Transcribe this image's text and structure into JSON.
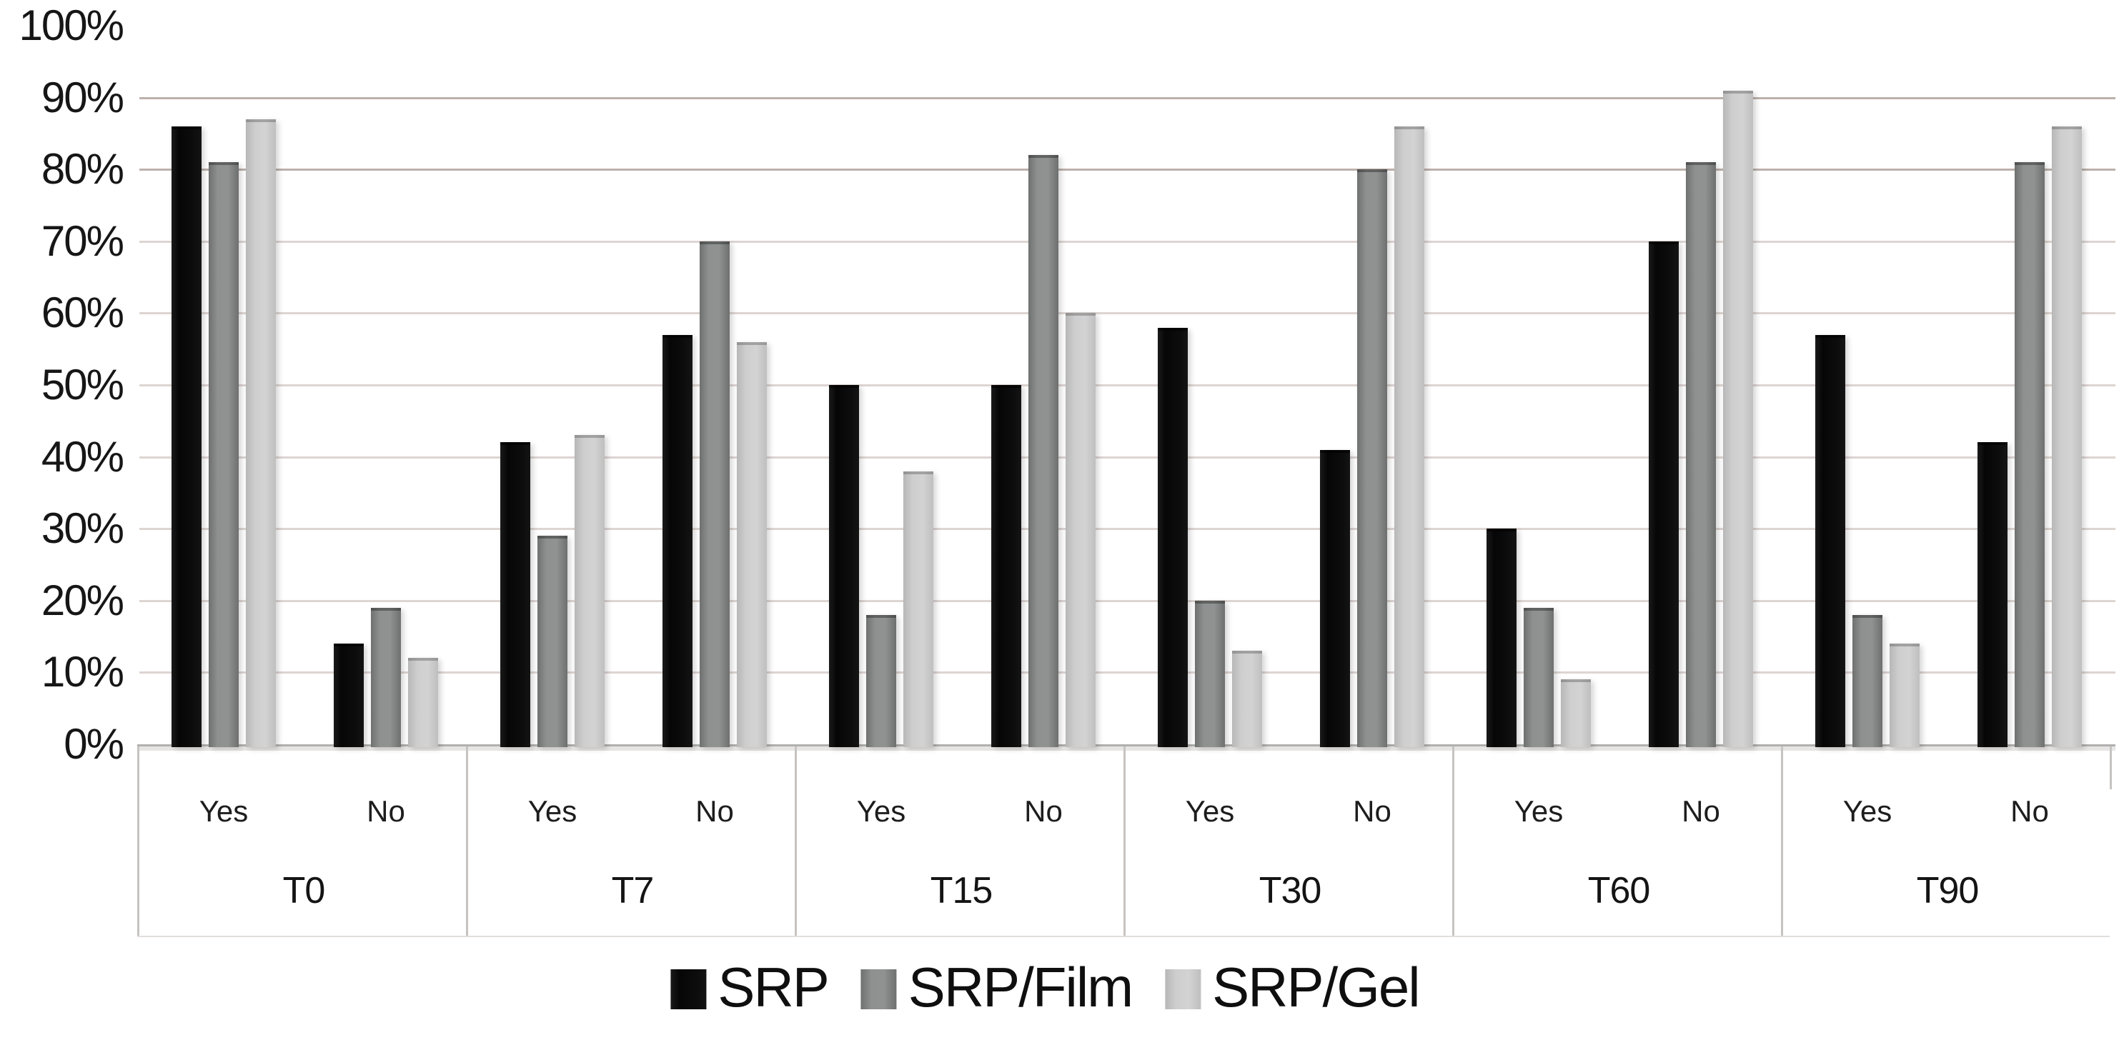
{
  "chart_data": {
    "type": "bar",
    "title": "",
    "xlabel": "",
    "ylabel": "",
    "unit": "%",
    "ylim": [
      0,
      100
    ],
    "y_tick_step": 10,
    "y_tick_labels": [
      "0%",
      "10%",
      "20%",
      "30%",
      "40%",
      "50%",
      "60%",
      "70%",
      "80%",
      "90%",
      "100%"
    ],
    "grid": true,
    "legend_position": "bottom",
    "series": [
      {
        "name": "SRP",
        "color": "#0d0d0d"
      },
      {
        "name": "SRP/Film",
        "color": "#8a8a8a"
      },
      {
        "name": "SRP/Gel",
        "color": "#cacaca"
      }
    ],
    "subgroup_labels": [
      "Yes",
      "No"
    ],
    "categories": [
      "T0",
      "T7",
      "T15",
      "T30",
      "T60",
      "T90"
    ],
    "groups": [
      {
        "time": "T0",
        "subgroups": [
          {
            "label": "Yes",
            "values": [
              86,
              81,
              87
            ]
          },
          {
            "label": "No",
            "values": [
              14,
              19,
              12
            ]
          }
        ]
      },
      {
        "time": "T7",
        "subgroups": [
          {
            "label": "Yes",
            "values": [
              42,
              29,
              43
            ]
          },
          {
            "label": "No",
            "values": [
              57,
              70,
              56
            ]
          }
        ]
      },
      {
        "time": "T15",
        "subgroups": [
          {
            "label": "Yes",
            "values": [
              50,
              18,
              38
            ]
          },
          {
            "label": "No",
            "values": [
              50,
              82,
              60
            ]
          }
        ]
      },
      {
        "time": "T30",
        "subgroups": [
          {
            "label": "Yes",
            "values": [
              58,
              20,
              13
            ]
          },
          {
            "label": "No",
            "values": [
              41,
              80,
              86
            ]
          }
        ]
      },
      {
        "time": "T60",
        "subgroups": [
          {
            "label": "Yes",
            "values": [
              30,
              19,
              9
            ]
          },
          {
            "label": "No",
            "values": [
              70,
              81,
              91
            ]
          }
        ]
      },
      {
        "time": "T90",
        "subgroups": [
          {
            "label": "Yes",
            "values": [
              57,
              18,
              14
            ]
          },
          {
            "label": "No",
            "values": [
              42,
              81,
              86
            ]
          }
        ]
      }
    ]
  }
}
